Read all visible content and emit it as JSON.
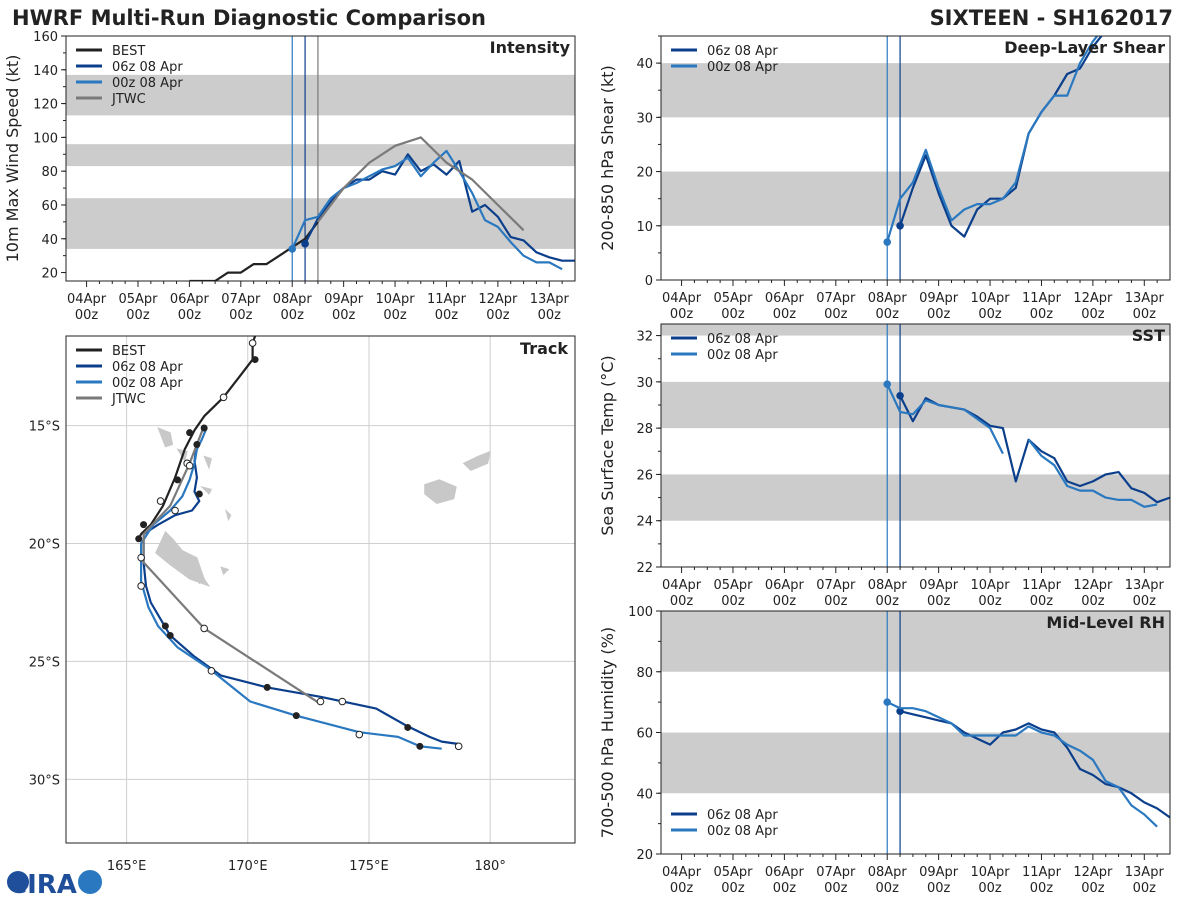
{
  "header": {
    "title": "HWRF Multi-Run Diagnostic Comparison",
    "storm": "SIXTEEN - SH162017"
  },
  "logo": {
    "text": "CIRA"
  },
  "colors": {
    "best": "#222222",
    "run06": "#0b3f8c",
    "run00": "#2a78c0",
    "jtwc": "#7a7a7a",
    "band": "#cccccc"
  },
  "time_ticks": [
    {
      "top": "04Apr",
      "bottom": "00z"
    },
    {
      "top": "05Apr",
      "bottom": "00z"
    },
    {
      "top": "06Apr",
      "bottom": "00z"
    },
    {
      "top": "07Apr",
      "bottom": "00z"
    },
    {
      "top": "08Apr",
      "bottom": "00z"
    },
    {
      "top": "09Apr",
      "bottom": "00z"
    },
    {
      "top": "10Apr",
      "bottom": "00z"
    },
    {
      "top": "11Apr",
      "bottom": "00z"
    },
    {
      "top": "12Apr",
      "bottom": "00z"
    },
    {
      "top": "13Apr",
      "bottom": "00z"
    }
  ],
  "chart_data": [
    {
      "id": "intensity",
      "type": "line",
      "title": "Intensity",
      "ylabel": "10m Max Wind Speed (kt)",
      "xlim": [
        3.6,
        13.5
      ],
      "ylim": [
        15,
        160
      ],
      "yticks": [
        20,
        40,
        60,
        80,
        100,
        120,
        140,
        160
      ],
      "bands": [
        [
          34,
          64
        ],
        [
          83,
          96
        ],
        [
          113,
          137
        ]
      ],
      "vlines": [
        {
          "x": 8.0,
          "series": "00z 08 Apr"
        },
        {
          "x": 8.25,
          "series": "06z 08 Apr"
        },
        {
          "x": 8.5,
          "series": "JTWC"
        }
      ],
      "legend": [
        "BEST",
        "06z 08 Apr",
        "00z 08 Apr",
        "JTWC"
      ],
      "series": [
        {
          "name": "BEST",
          "key": "best",
          "x": [
            6.0,
            6.25,
            6.5,
            6.75,
            7.0,
            7.25,
            7.5,
            7.75,
            8.0,
            8.25,
            8.5
          ],
          "y": [
            15,
            15,
            15,
            20,
            20,
            25,
            25,
            30,
            35,
            40,
            50
          ]
        },
        {
          "name": "06z 08 Apr",
          "key": "run06",
          "x": [
            8.25,
            8.5,
            8.75,
            9.0,
            9.25,
            9.5,
            9.75,
            10.0,
            10.25,
            10.5,
            10.75,
            11.0,
            11.25,
            11.5,
            11.75,
            12.0,
            12.25,
            12.5,
            12.75,
            13.0,
            13.25,
            13.5
          ],
          "y": [
            37,
            52,
            62,
            70,
            75,
            75,
            80,
            78,
            90,
            80,
            84,
            78,
            86,
            56,
            60,
            53,
            41,
            39,
            32,
            29,
            27,
            27
          ],
          "markers": [
            {
              "x": 8.25,
              "y": 37
            }
          ]
        },
        {
          "name": "00z 08 Apr",
          "key": "run00",
          "x": [
            8.0,
            8.25,
            8.5,
            8.75,
            9.0,
            9.25,
            9.5,
            9.75,
            10.0,
            10.25,
            10.5,
            10.75,
            11.0,
            11.25,
            11.5,
            11.75,
            12.0,
            12.25,
            12.5,
            12.75,
            13.0,
            13.25
          ],
          "y": [
            34,
            51,
            53,
            64,
            70,
            73,
            77,
            81,
            83,
            88,
            77,
            85,
            92,
            80,
            67,
            51,
            47,
            38,
            30,
            26,
            26,
            22
          ],
          "markers": [
            {
              "x": 8.0,
              "y": 34
            }
          ]
        },
        {
          "name": "JTWC",
          "key": "jtwc",
          "x": [
            8.5,
            9.0,
            9.5,
            10.0,
            10.5,
            11.0,
            11.5,
            12.0,
            12.5
          ],
          "y": [
            50,
            70,
            85,
            95,
            100,
            85,
            75,
            60,
            45
          ]
        }
      ]
    },
    {
      "id": "shear",
      "type": "line",
      "title": "Deep-Layer Shear",
      "ylabel": "200-850 hPa Shear (kt)",
      "xlim": [
        3.6,
        13.5
      ],
      "ylim": [
        0,
        45
      ],
      "yticks": [
        0,
        10,
        20,
        30,
        40
      ],
      "bands": [
        [
          10,
          20
        ],
        [
          30,
          40
        ]
      ],
      "vlines": [
        {
          "x": 8.0,
          "series": "00z 08 Apr"
        },
        {
          "x": 8.25,
          "series": "06z 08 Apr"
        }
      ],
      "legend": [
        "06z 08 Apr",
        "00z 08 Apr"
      ],
      "series": [
        {
          "name": "06z 08 Apr",
          "key": "run06",
          "x": [
            8.25,
            8.5,
            8.75,
            9.0,
            9.25,
            9.5,
            9.75,
            10.0,
            10.25,
            10.5,
            10.75,
            11.0,
            11.25,
            11.5,
            11.75,
            12.0,
            12.25
          ],
          "y": [
            10,
            17,
            23,
            16,
            10,
            8,
            13,
            15,
            15,
            17,
            27,
            31,
            34,
            38,
            39,
            43,
            46
          ],
          "markers": [
            {
              "x": 8.25,
              "y": 10
            }
          ]
        },
        {
          "name": "00z 08 Apr",
          "key": "run00",
          "x": [
            8.0,
            8.25,
            8.5,
            8.75,
            9.0,
            9.25,
            9.5,
            9.75,
            10.0,
            10.25,
            10.5,
            10.75,
            11.0,
            11.25,
            11.5,
            11.75,
            12.0,
            12.25
          ],
          "y": [
            7,
            15,
            18,
            24,
            17,
            11,
            13,
            14,
            14,
            15,
            18,
            27,
            31,
            34,
            34,
            40,
            44,
            47
          ],
          "markers": [
            {
              "x": 8.0,
              "y": 7
            }
          ]
        }
      ]
    },
    {
      "id": "sst",
      "type": "line",
      "title": "SST",
      "ylabel": "Sea Surface Temp (°C)",
      "xlim": [
        3.6,
        13.5
      ],
      "ylim": [
        22,
        32.5
      ],
      "yticks": [
        22,
        24,
        26,
        28,
        30,
        32
      ],
      "bands": [
        [
          24,
          26
        ],
        [
          28,
          30
        ],
        [
          32,
          34
        ]
      ],
      "vlines": [
        {
          "x": 8.0,
          "series": "00z 08 Apr"
        },
        {
          "x": 8.25,
          "series": "06z 08 Apr"
        }
      ],
      "legend": [
        "06z 08 Apr",
        "00z 08 Apr"
      ],
      "series": [
        {
          "name": "06z 08 Apr",
          "key": "run06",
          "x": [
            8.25,
            8.5,
            8.75,
            9.0,
            9.25,
            9.5,
            9.75,
            10.0,
            10.25,
            10.5,
            10.75,
            11.0,
            11.25,
            11.5,
            11.75,
            12.0,
            12.25,
            12.5,
            12.75,
            13.0,
            13.25,
            13.5
          ],
          "y": [
            29.4,
            28.3,
            29.3,
            29.0,
            28.9,
            28.8,
            28.5,
            28.1,
            28.0,
            25.7,
            27.5,
            27.0,
            26.7,
            25.7,
            25.5,
            25.7,
            26.0,
            26.1,
            25.4,
            25.2,
            24.8,
            25.0
          ],
          "markers": [
            {
              "x": 8.25,
              "y": 29.4
            }
          ]
        },
        {
          "name": "00z 08 Apr",
          "key": "run00",
          "x": [
            8.0,
            8.25,
            8.5,
            8.75,
            9.0,
            9.25,
            9.5,
            9.75,
            10.0,
            10.25
          ],
          "y": [
            29.9,
            28.7,
            28.6,
            29.2,
            29.0,
            28.9,
            28.8,
            28.4,
            28.0,
            26.9
          ],
          "markers": [
            {
              "x": 8.0,
              "y": 29.9
            }
          ]
        },
        {
          "name": "00z 08 Apr cont",
          "key": "run00",
          "x": [
            10.75,
            11.0,
            11.25,
            11.5,
            11.75,
            12.0,
            12.25,
            12.5,
            12.75,
            13.0,
            13.25
          ],
          "y": [
            27.5,
            26.8,
            26.4,
            25.5,
            25.3,
            25.3,
            25.0,
            24.9,
            24.9,
            24.6,
            24.7
          ]
        }
      ]
    },
    {
      "id": "rh",
      "type": "line",
      "title": "Mid-Level RH",
      "ylabel": "700-500 hPa Humidity (%)",
      "xlim": [
        3.6,
        13.5
      ],
      "ylim": [
        20,
        100
      ],
      "yticks": [
        20,
        40,
        60,
        80,
        100
      ],
      "bands": [
        [
          40,
          60
        ],
        [
          80,
          100
        ]
      ],
      "vlines": [
        {
          "x": 8.0,
          "series": "00z 08 Apr"
        },
        {
          "x": 8.25,
          "series": "06z 08 Apr"
        }
      ],
      "legend": [
        "06z 08 Apr",
        "00z 08 Apr"
      ],
      "series": [
        {
          "name": "06z 08 Apr",
          "key": "run06",
          "x": [
            8.25,
            8.5,
            8.75,
            9.0,
            9.25,
            9.5,
            9.75,
            10.0,
            10.25,
            10.5,
            10.75,
            11.0,
            11.25,
            11.5,
            11.75,
            12.0,
            12.25,
            12.5,
            12.75,
            13.0,
            13.25,
            13.5
          ],
          "y": [
            67,
            66,
            65,
            64,
            63,
            60,
            58,
            56,
            60,
            61,
            63,
            61,
            60,
            55,
            48,
            46,
            43,
            42,
            40,
            37,
            35,
            32
          ],
          "markers": [
            {
              "x": 8.25,
              "y": 67
            }
          ]
        },
        {
          "name": "00z 08 Apr",
          "key": "run00",
          "x": [
            8.0,
            8.25,
            8.5,
            8.75,
            9.0,
            9.25,
            9.5,
            9.75,
            10.0,
            10.25,
            10.5,
            10.75,
            11.0,
            11.25,
            11.5,
            11.75,
            12.0,
            12.25,
            12.5,
            12.75,
            13.0,
            13.25
          ],
          "y": [
            70,
            68,
            68,
            67,
            65,
            63,
            59,
            59,
            59,
            59,
            59,
            62,
            60,
            59,
            56,
            54,
            51,
            44,
            42,
            36,
            33,
            29
          ],
          "markers": [
            {
              "x": 8.0,
              "y": 70
            }
          ]
        }
      ]
    },
    {
      "id": "track",
      "type": "line",
      "title": "Track",
      "xlabel_ticks": [
        "165°E",
        "170°E",
        "175°E",
        "180°"
      ],
      "ylabel_ticks": [
        "15°S",
        "20°S",
        "25°S",
        "30°S"
      ],
      "xlim": [
        162.5,
        183.5
      ],
      "ylim": [
        -32.7,
        -11.2
      ],
      "xticks": [
        165,
        170,
        175,
        180
      ],
      "yticks": [
        -15,
        -20,
        -25,
        -30
      ],
      "legend": [
        "BEST",
        "06z 08 Apr",
        "00z 08 Apr",
        "JTWC"
      ],
      "series": [
        {
          "name": "BEST",
          "key": "best",
          "lon": [
            170.3,
            170.2,
            170.2,
            169.6,
            169.0,
            168.2,
            167.8,
            167.4,
            167.0,
            166.5,
            166.0,
            165.6,
            165.5
          ],
          "lat": [
            -11.2,
            -11.5,
            -12.2,
            -13.0,
            -13.8,
            -14.6,
            -15.2,
            -16.0,
            -17.2,
            -18.4,
            -19.2,
            -19.6,
            -19.8
          ],
          "open": [
            [
              170.2,
              -11.5
            ],
            [
              169.0,
              -13.8
            ],
            [
              167.5,
              -16.6
            ],
            [
              166.4,
              -18.2
            ]
          ],
          "filled": [
            [
              170.3,
              -12.2
            ],
            [
              167.6,
              -15.3
            ],
            [
              167.1,
              -17.3
            ],
            [
              165.7,
              -19.2
            ],
            [
              165.5,
              -19.8
            ]
          ]
        },
        {
          "name": "06z 08 Apr",
          "key": "run06",
          "lon": [
            167.9,
            167.8,
            167.9,
            167.8,
            168.0,
            167.7,
            167.0,
            166.3,
            165.7,
            165.7,
            165.8,
            166.0,
            166.8,
            167.8,
            168.9,
            170.8,
            173.0,
            175.3,
            176.5,
            177.5,
            178.0,
            178.7
          ],
          "lat": [
            -15.8,
            -16.5,
            -17.2,
            -17.8,
            -18.2,
            -18.6,
            -18.8,
            -19.2,
            -19.6,
            -20.8,
            -21.8,
            -22.5,
            -23.9,
            -24.8,
            -25.6,
            -26.1,
            -26.5,
            -27.0,
            -27.7,
            -28.2,
            -28.4,
            -28.5
          ],
          "open": [
            [
              173.9,
              -26.7
            ],
            [
              178.7,
              -28.6
            ]
          ],
          "filled": [
            [
              167.9,
              -15.8
            ],
            [
              168.0,
              -17.9
            ],
            [
              166.8,
              -23.9
            ],
            [
              170.8,
              -26.1
            ],
            [
              176.6,
              -27.8
            ]
          ]
        },
        {
          "name": "00z 08 Apr",
          "key": "run00",
          "lon": [
            168.3,
            168.1,
            167.9,
            167.8,
            167.6,
            167.3,
            166.8,
            166.1,
            165.6,
            165.6,
            165.6,
            165.9,
            166.3,
            167.1,
            168.4,
            170.1,
            172.0,
            174.6,
            176.2,
            177.1,
            178.0
          ],
          "lat": [
            -15.1,
            -15.6,
            -16.0,
            -16.6,
            -17.3,
            -18.0,
            -18.6,
            -19.2,
            -20.0,
            -20.8,
            -21.6,
            -22.7,
            -23.5,
            -24.4,
            -25.3,
            -26.7,
            -27.3,
            -28.0,
            -28.2,
            -28.6,
            -28.7
          ],
          "open": [
            [
              167.6,
              -16.7
            ],
            [
              167.0,
              -18.6
            ],
            [
              165.6,
              -20.6
            ],
            [
              165.6,
              -21.8
            ],
            [
              168.5,
              -25.4
            ],
            [
              174.6,
              -28.1
            ]
          ],
          "filled": [
            [
              168.2,
              -15.1
            ],
            [
              166.6,
              -23.5
            ],
            [
              172.0,
              -27.3
            ],
            [
              177.1,
              -28.6
            ]
          ]
        },
        {
          "name": "JTWC",
          "key": "jtwc",
          "lon": [
            168.2,
            167.6,
            166.8,
            165.7,
            165.7,
            168.2,
            173.0
          ],
          "lat": [
            -15.0,
            -16.6,
            -18.4,
            -19.6,
            -20.8,
            -23.6,
            -26.8
          ],
          "open": [
            [
              168.2,
              -23.6
            ],
            [
              173.0,
              -26.7
            ]
          ],
          "filled": []
        }
      ]
    }
  ]
}
